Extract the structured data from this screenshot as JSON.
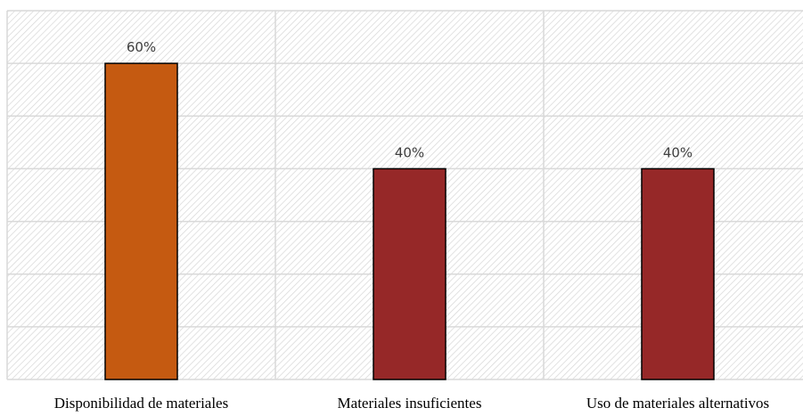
{
  "chart_data": {
    "type": "bar",
    "categories": [
      "Disponibilidad de materiales",
      "Materiales insuficientes",
      "Uso de materiales alternativos"
    ],
    "values": [
      60,
      40,
      40
    ],
    "data_labels": [
      "60%",
      "40%",
      "40%"
    ],
    "ylim": [
      0,
      70
    ],
    "grid": true,
    "legend": "none",
    "colors": [
      "#C55A11",
      "#962828",
      "#962828"
    ],
    "background_pattern": "diagonal-hatch"
  }
}
